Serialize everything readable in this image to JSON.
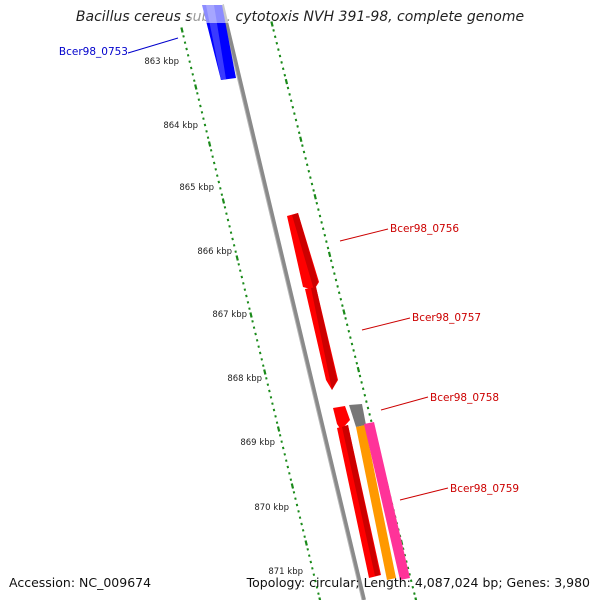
{
  "title": "Bacillus cereus subsp. cytotoxis NVH 391-98, complete genome",
  "footer": {
    "accession": "Accession: NC_009674",
    "info": "Topology: circular; Length: 4,087,024 bp; Genes: 3,980"
  },
  "ticks": [
    "863 kbp",
    "864 kbp",
    "865 kbp",
    "866 kbp",
    "867 kbp",
    "868 kbp",
    "869 kbp",
    "870 kbp",
    "871 kbp"
  ],
  "genes": [
    {
      "label": "Bcer98_0753",
      "color": "#0000cc"
    },
    {
      "label": "Bcer98_0756",
      "color": "#cc0000"
    },
    {
      "label": "Bcer98_0757",
      "color": "#cc0000"
    },
    {
      "label": "Bcer98_0758",
      "color": "#cc0000"
    },
    {
      "label": "Bcer98_0759",
      "color": "#cc0000"
    }
  ],
  "colors": {
    "backbone": "#888888",
    "tick_marks": "#1a8a1a",
    "forward_cds": "#ff0000",
    "reverse_cds": "#0000ff",
    "orange_feature": "#ff9900",
    "pink_feature": "#ff3399",
    "gray_feature": "#777777"
  }
}
